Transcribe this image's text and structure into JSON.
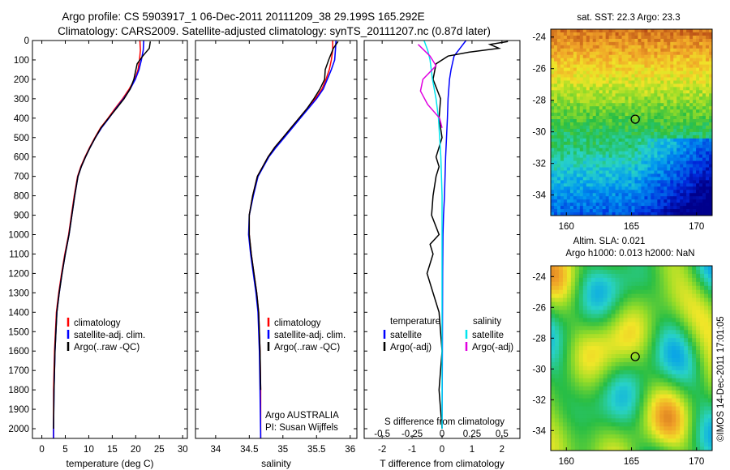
{
  "title": {
    "line1": "Argo profile: CS 5903917_1 06-Dec-2011 20111209_38 29.199S 165.292E",
    "line2": "Climatology: CARS2009. Satellite-adjusted climatology: synTS_20111207.nc (0.87d later)"
  },
  "colors": {
    "climatology": "#ff0000",
    "satellite": "#0000ff",
    "argo": "#000000",
    "salinity_satellite": "#00e5ee",
    "salinity_argo": "#e000e0"
  },
  "depth_axis": {
    "lim": [
      0,
      2050
    ],
    "ticks": [
      0,
      100,
      200,
      300,
      400,
      500,
      600,
      700,
      800,
      900,
      1000,
      1100,
      1200,
      1300,
      1400,
      1500,
      1600,
      1700,
      1800,
      1900,
      2000
    ]
  },
  "chart_data": [
    {
      "type": "line",
      "name": "temperature-profile",
      "xlabel": "temperature (deg C)",
      "ylabel": "",
      "xlim": [
        -2,
        31
      ],
      "ylim": [
        0,
        2050
      ],
      "xticks": [
        0,
        5,
        10,
        15,
        20,
        25,
        30
      ],
      "legend": [
        "climatology",
        "satellite-adj. clim.",
        "Argo(..raw -QC)"
      ],
      "legend_position": "lower-center",
      "series": [
        {
          "name": "climatology",
          "x": [
            20.9,
            21.0,
            20.8,
            20.5,
            19.8,
            18.6,
            17.2,
            15.6,
            14.1,
            12.5,
            11.3,
            10.2,
            9.2,
            8.3,
            7.6,
            6.9,
            6.3,
            5.7,
            4.9,
            4.2,
            3.6,
            3.1,
            2.7,
            2.5,
            2.5,
            2.5
          ],
          "y": [
            0,
            50,
            100,
            150,
            200,
            250,
            300,
            350,
            400,
            450,
            500,
            550,
            600,
            650,
            700,
            800,
            900,
            1000,
            1100,
            1200,
            1300,
            1400,
            1600,
            1800,
            2000,
            2050
          ]
        },
        {
          "name": "satellite-adj. clim.",
          "x": [
            21.7,
            21.6,
            21.2,
            20.7,
            19.9,
            18.8,
            17.4,
            15.8,
            14.3,
            12.7,
            11.4,
            10.3,
            9.3,
            8.4,
            7.7,
            7.0,
            6.4,
            5.8,
            5.0,
            4.3,
            3.7,
            3.2,
            2.8,
            2.6,
            2.5,
            2.5
          ],
          "y": [
            0,
            50,
            100,
            150,
            200,
            250,
            300,
            350,
            400,
            450,
            500,
            550,
            600,
            650,
            700,
            800,
            900,
            1000,
            1100,
            1200,
            1300,
            1400,
            1600,
            1800,
            2000,
            2050
          ]
        },
        {
          "name": "Argo(..raw -QC)",
          "x": [
            23.1,
            22.9,
            21.5,
            20.3,
            19.6,
            18.8,
            17.5,
            15.9,
            14.2,
            12.6,
            11.4,
            10.3,
            9.3,
            8.4,
            7.7,
            7.0,
            6.4,
            5.8,
            5.0,
            4.3,
            3.7,
            3.2,
            2.8,
            2.6,
            2.5
          ],
          "y": [
            5,
            40,
            80,
            120,
            200,
            250,
            300,
            350,
            400,
            450,
            500,
            550,
            600,
            650,
            700,
            800,
            900,
            1000,
            1100,
            1200,
            1300,
            1400,
            1600,
            1800,
            2000
          ]
        }
      ]
    },
    {
      "type": "line",
      "name": "salinity-profile",
      "xlabel": "salinity",
      "ylabel": "",
      "xlim": [
        33.7,
        36.1
      ],
      "ylim": [
        0,
        2050
      ],
      "xticks": [
        34,
        34.5,
        35,
        35.5,
        36
      ],
      "legend": [
        "climatology",
        "satellite-adj. clim.",
        "Argo(..raw -QC)"
      ],
      "legend_position": "lower-right",
      "annotation": [
        "Argo AUSTRALIA",
        "PI: Susan Wijffels"
      ],
      "series": [
        {
          "name": "climatology",
          "x": [
            35.74,
            35.74,
            35.72,
            35.69,
            35.64,
            35.58,
            35.48,
            35.36,
            35.24,
            35.12,
            35.0,
            34.88,
            34.78,
            34.7,
            34.62,
            34.55,
            34.5,
            34.5,
            34.53,
            34.57,
            34.61,
            34.64,
            34.66,
            34.67,
            34.67
          ],
          "y": [
            0,
            50,
            100,
            150,
            200,
            250,
            300,
            350,
            400,
            450,
            500,
            550,
            600,
            650,
            700,
            800,
            900,
            1000,
            1100,
            1200,
            1300,
            1400,
            1600,
            1800,
            2050
          ]
        },
        {
          "name": "satellite-adj. clim.",
          "x": [
            35.79,
            35.78,
            35.77,
            35.72,
            35.66,
            35.6,
            35.5,
            35.38,
            35.26,
            35.14,
            35.02,
            34.9,
            34.79,
            34.71,
            34.63,
            34.56,
            34.5,
            34.49,
            34.52,
            34.56,
            34.6,
            34.63,
            34.65,
            34.66,
            34.67
          ],
          "y": [
            0,
            50,
            100,
            150,
            200,
            250,
            300,
            350,
            400,
            450,
            500,
            550,
            600,
            650,
            700,
            800,
            900,
            1000,
            1100,
            1200,
            1300,
            1400,
            1600,
            1800,
            2050
          ]
        },
        {
          "name": "Argo(..raw -QC)",
          "x": [
            35.82,
            35.75,
            35.68,
            35.63,
            35.62,
            35.55,
            35.46,
            35.36,
            35.24,
            35.12,
            35.0,
            34.88,
            34.78,
            34.7,
            34.62,
            34.55,
            34.5,
            34.5,
            34.53,
            34.57,
            34.61,
            34.64,
            34.66,
            34.67
          ],
          "y": [
            5,
            40,
            100,
            150,
            200,
            250,
            300,
            350,
            400,
            450,
            500,
            550,
            600,
            650,
            700,
            800,
            900,
            1000,
            1100,
            1200,
            1300,
            1400,
            1600,
            1800
          ]
        }
      ]
    },
    {
      "type": "line",
      "name": "difference-profile",
      "xlabel": "T difference from climatology",
      "xlabel_top": "S difference from climatology",
      "xlim": [
        -2.6,
        2.6
      ],
      "ylim": [
        0,
        2050
      ],
      "xticks": [
        -2,
        -1,
        0,
        1,
        2
      ],
      "xticks_S": [
        -0.5,
        -0.25,
        0,
        0.25,
        0.5
      ],
      "legend_titles": [
        "temperature",
        "salinity"
      ],
      "legend": [
        "satellite",
        "Argo(-adj)",
        "satellite",
        "Argo(-adj)"
      ],
      "series": [
        {
          "name": "temperature satellite",
          "x": [
            0.8,
            0.6,
            0.4,
            0.3,
            0.25,
            0.2,
            0.18,
            0.15,
            0.12,
            0.1,
            0.08,
            0.05,
            0.03,
            0.02,
            0.01,
            0.0
          ],
          "y": [
            0,
            40,
            80,
            150,
            200,
            300,
            400,
            500,
            600,
            700,
            800,
            900,
            1000,
            1200,
            1600,
            2000
          ]
        },
        {
          "name": "temperature Argo(-adj)",
          "x": [
            2.2,
            1.6,
            1.9,
            0.9,
            0.2,
            -0.2,
            -0.3,
            -0.05,
            -0.1,
            0.0,
            -0.2,
            -0.1,
            -0.2,
            -0.3,
            -0.35,
            -0.1,
            -0.4,
            -0.3,
            -0.5,
            -0.3,
            -0.1,
            0.0,
            -0.1,
            0.0
          ],
          "y": [
            5,
            20,
            40,
            60,
            80,
            120,
            200,
            300,
            400,
            500,
            600,
            650,
            700,
            800,
            900,
            1000,
            1050,
            1100,
            1200,
            1300,
            1400,
            1600,
            1800,
            2000
          ]
        },
        {
          "name": "salinity satellite",
          "x": [
            -0.15,
            -0.12,
            -0.1,
            -0.08,
            -0.05,
            -0.03,
            -0.01,
            0.0,
            0.0,
            0.0
          ],
          "y": [
            0,
            50,
            100,
            200,
            300,
            400,
            600,
            800,
            1200,
            2000
          ]
        },
        {
          "name": "salinity Argo(-adj)",
          "x": [
            -0.2,
            -0.1,
            -0.05,
            -0.16,
            -0.18,
            -0.12,
            -0.02,
            0.0
          ],
          "y": [
            20,
            80,
            130,
            200,
            260,
            330,
            400,
            450
          ]
        }
      ]
    },
    {
      "type": "heatmap",
      "name": "sst-map",
      "title": "sat. SST: 22.3 Argo: 23.3",
      "xlim": [
        158.8,
        171.2
      ],
      "ylim": [
        -35.3,
        -23.5
      ],
      "xticks": [
        160,
        165,
        170
      ],
      "yticks": [
        -24,
        -26,
        -28,
        -30,
        -32,
        -34
      ],
      "marker": {
        "lon": 165.29,
        "lat": -29.2
      }
    },
    {
      "type": "heatmap",
      "name": "sla-map",
      "title_lines": [
        "Altim. SLA: 0.021",
        "Argo h1000: 0.013 h2000: NaN"
      ],
      "xlim": [
        158.8,
        171.2
      ],
      "ylim": [
        -35.3,
        -23.3
      ],
      "xticks": [
        160,
        165,
        170
      ],
      "yticks": [
        -24,
        -26,
        -28,
        -30,
        -32,
        -34
      ],
      "marker": {
        "lon": 165.29,
        "lat": -29.2
      }
    }
  ],
  "credit": "©IMOS 14-Dec-2011 17:01:05"
}
